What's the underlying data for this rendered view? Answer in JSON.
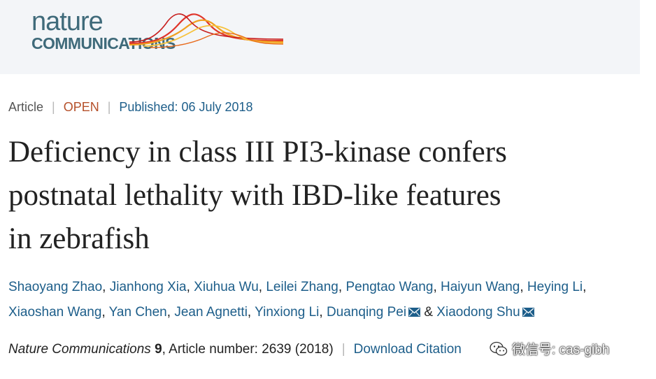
{
  "header": {
    "logo_nature": "nature",
    "logo_communications": "COMMUNICATIONS"
  },
  "meta": {
    "type": "Article",
    "access": "OPEN",
    "published": "Published: 06 July 2018"
  },
  "title": {
    "line1": "Deficiency in class III PI3-kinase confers",
    "line2": "postnatal lethality with IBD-like features",
    "line3": "in zebrafish"
  },
  "authors": [
    "Shaoyang Zhao",
    "Jianhong Xia",
    "Xiuhua Wu",
    "Leilei Zhang",
    "Pengtao Wang",
    "Haiyun Wang",
    "Heying Li",
    "Xiaoshan Wang",
    "Yan Chen",
    "Jean Agnetti",
    "Yinxiong Li",
    "Duanqing Pei",
    "Xiaodong Shu"
  ],
  "author_separators": {
    "comma": ",",
    "ampersand": "&"
  },
  "citation": {
    "journal": "Nature Communications",
    "volume": "9",
    "article_number": ", Article number: 2639 (2018)",
    "download": "Download Citation"
  },
  "watermark": {
    "text": "微信号: cas-gibh"
  },
  "colors": {
    "link": "#1d5e8a",
    "open": "#b5502a",
    "logo": "#3f6a7a",
    "header_bg": "#f3f5f8"
  }
}
